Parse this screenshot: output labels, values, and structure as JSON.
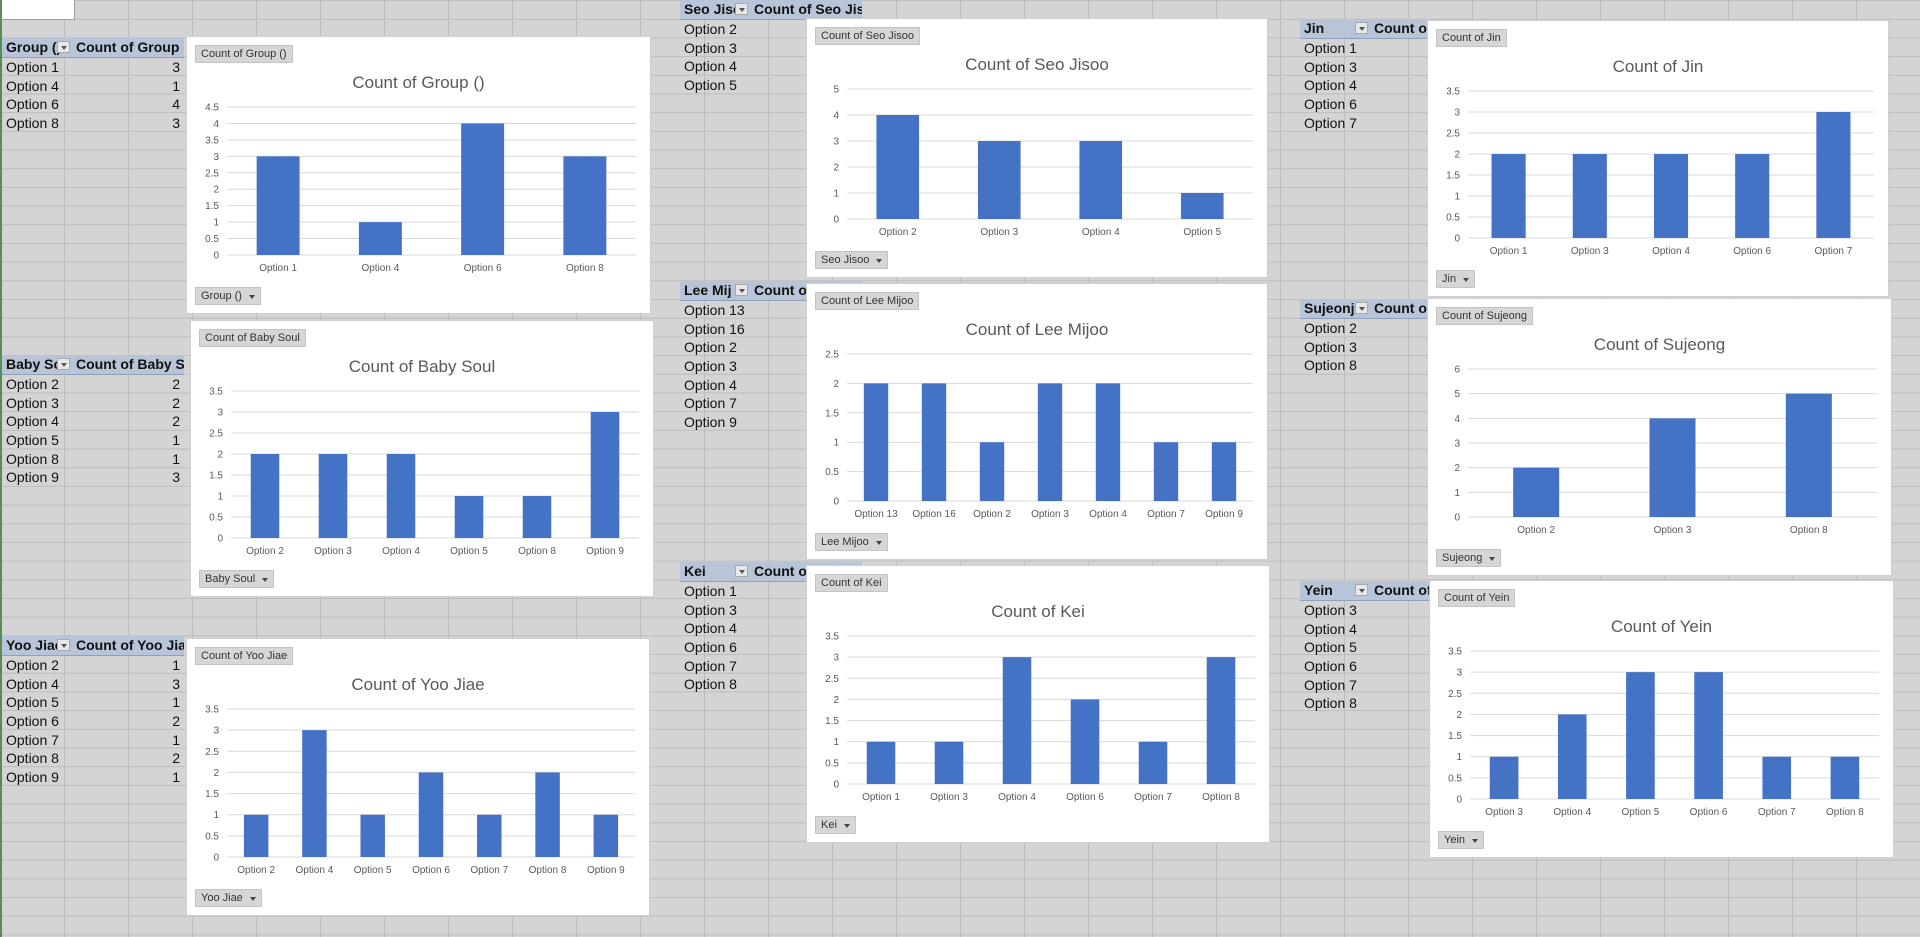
{
  "pivots": [
    {
      "row_header": "Group ()",
      "value_header": "Count of Group ()",
      "rows": [
        [
          "Option 1",
          "3"
        ],
        [
          "Option 4",
          "1"
        ],
        [
          "Option 6",
          "4"
        ],
        [
          "Option 8",
          "3"
        ]
      ]
    },
    {
      "row_header": "Baby Sou",
      "value_header": "Count of Baby Sou",
      "rows": [
        [
          "Option 2",
          "2"
        ],
        [
          "Option 3",
          "2"
        ],
        [
          "Option 4",
          "2"
        ],
        [
          "Option 5",
          "1"
        ],
        [
          "Option 8",
          "1"
        ],
        [
          "Option 9",
          "3"
        ]
      ]
    },
    {
      "row_header": "Yoo Jiae",
      "value_header": "Count of Yoo Jiae",
      "rows": [
        [
          "Option 2",
          "1"
        ],
        [
          "Option 4",
          "3"
        ],
        [
          "Option 5",
          "1"
        ],
        [
          "Option 6",
          "2"
        ],
        [
          "Option 7",
          "1"
        ],
        [
          "Option 8",
          "2"
        ],
        [
          "Option 9",
          "1"
        ]
      ]
    },
    {
      "row_header": "Seo Jisc",
      "value_header": "Count of Seo Jisoo",
      "rows": [
        [
          "Option 2",
          "4"
        ],
        [
          "Option 3",
          "3"
        ],
        [
          "Option 4",
          "3"
        ],
        [
          "Option 5",
          "1"
        ]
      ]
    },
    {
      "row_header": "Lee Mij",
      "value_header": "Count of L",
      "rows": [
        [
          "Option 13",
          "2"
        ],
        [
          "Option 16",
          "2"
        ],
        [
          "Option 2",
          "1"
        ],
        [
          "Option 3",
          "2"
        ],
        [
          "Option 4",
          "2"
        ],
        [
          "Option 7",
          "1"
        ],
        [
          "Option 9",
          "1"
        ]
      ]
    },
    {
      "row_header": "Kei",
      "value_header": "Count of K",
      "rows": [
        [
          "Option 1",
          "1"
        ],
        [
          "Option 3",
          "1"
        ],
        [
          "Option 4",
          "3"
        ],
        [
          "Option 6",
          "2"
        ],
        [
          "Option 7",
          "1"
        ],
        [
          "Option 8",
          "3"
        ]
      ]
    },
    {
      "row_header": "Jin",
      "value_header": "Count of J",
      "rows": [
        [
          "Option 1",
          "2"
        ],
        [
          "Option 3",
          "2"
        ],
        [
          "Option 4",
          "2"
        ],
        [
          "Option 6",
          "2"
        ],
        [
          "Option 7",
          "3"
        ]
      ]
    },
    {
      "row_header": "Sujeonj",
      "value_header": "Count of S",
      "rows": [
        [
          "Option 2",
          "2"
        ],
        [
          "Option 3",
          "4"
        ],
        [
          "Option 8",
          "5"
        ]
      ]
    },
    {
      "row_header": "Yein",
      "value_header": "Count of Y",
      "rows": [
        [
          "Option 3",
          "1"
        ],
        [
          "Option 4",
          "2"
        ],
        [
          "Option 5",
          "3"
        ],
        [
          "Option 6",
          "3"
        ],
        [
          "Option 7",
          "1"
        ],
        [
          "Option 8",
          "1"
        ]
      ]
    }
  ],
  "chart_data": [
    {
      "type": "bar",
      "tag": "Count of Group ()",
      "title": "Count of Group ()",
      "filter": "Group ()",
      "categories": [
        "Option 1",
        "Option 4",
        "Option 6",
        "Option 8"
      ],
      "values": [
        3,
        1,
        4,
        3
      ],
      "ylim": [
        0,
        4.5
      ],
      "ticks": [
        "0",
        "0.5",
        "1",
        "1.5",
        "2",
        "2.5",
        "3",
        "3.5",
        "4",
        "4.5"
      ]
    },
    {
      "type": "bar",
      "tag": "Count of Baby Soul",
      "title": "Count of Baby Soul",
      "filter": "Baby Soul",
      "categories": [
        "Option 2",
        "Option 3",
        "Option 4",
        "Option 5",
        "Option 8",
        "Option 9"
      ],
      "values": [
        2,
        2,
        2,
        1,
        1,
        3
      ],
      "ylim": [
        0,
        3.5
      ],
      "ticks": [
        "0",
        "0.5",
        "1",
        "1.5",
        "2",
        "2.5",
        "3",
        "3.5"
      ]
    },
    {
      "type": "bar",
      "tag": "Count of Yoo Jiae",
      "title": "Count of Yoo Jiae",
      "filter": "Yoo Jiae",
      "categories": [
        "Option 2",
        "Option 4",
        "Option 5",
        "Option 6",
        "Option 7",
        "Option 8",
        "Option 9"
      ],
      "values": [
        1,
        3,
        1,
        2,
        1,
        2,
        1
      ],
      "ylim": [
        0,
        3.5
      ],
      "ticks": [
        "0",
        "0.5",
        "1",
        "1.5",
        "2",
        "2.5",
        "3",
        "3.5"
      ]
    },
    {
      "type": "bar",
      "tag": "Count of Seo Jisoo",
      "title": "Count of Seo Jisoo",
      "filter": "Seo Jisoo",
      "categories": [
        "Option 2",
        "Option 3",
        "Option 4",
        "Option 5"
      ],
      "values": [
        4,
        3,
        3,
        1
      ],
      "ylim": [
        0,
        5
      ],
      "ticks": [
        "0",
        "1",
        "2",
        "3",
        "4",
        "5"
      ]
    },
    {
      "type": "bar",
      "tag": "Count of Lee Mijoo",
      "title": "Count of Lee Mijoo",
      "filter": "Lee Mijoo",
      "categories": [
        "Option 13",
        "Option 16",
        "Option 2",
        "Option 3",
        "Option 4",
        "Option 7",
        "Option 9"
      ],
      "values": [
        2,
        2,
        1,
        2,
        2,
        1,
        1
      ],
      "ylim": [
        0,
        2.5
      ],
      "ticks": [
        "0",
        "0.5",
        "1",
        "1.5",
        "2",
        "2.5"
      ]
    },
    {
      "type": "bar",
      "tag": "Count of Kei",
      "title": "Count of Kei",
      "filter": "Kei",
      "categories": [
        "Option 1",
        "Option 3",
        "Option 4",
        "Option 6",
        "Option 7",
        "Option 8"
      ],
      "values": [
        1,
        1,
        3,
        2,
        1,
        3
      ],
      "ylim": [
        0,
        3.5
      ],
      "ticks": [
        "0",
        "0.5",
        "1",
        "1.5",
        "2",
        "2.5",
        "3",
        "3.5"
      ]
    },
    {
      "type": "bar",
      "tag": "Count of Jin",
      "title": "Count of Jin",
      "filter": "Jin",
      "categories": [
        "Option 1",
        "Option 3",
        "Option 4",
        "Option 6",
        "Option 7"
      ],
      "values": [
        2,
        2,
        2,
        2,
        3
      ],
      "ylim": [
        0,
        3.5
      ],
      "ticks": [
        "0",
        "0.5",
        "1",
        "1.5",
        "2",
        "2.5",
        "3",
        "3.5"
      ]
    },
    {
      "type": "bar",
      "tag": "Count of Sujeong",
      "title": "Count of Sujeong",
      "filter": "Sujeong",
      "categories": [
        "Option 2",
        "Option 3",
        "Option 8"
      ],
      "values": [
        2,
        4,
        5
      ],
      "ylim": [
        0,
        6
      ],
      "ticks": [
        "0",
        "1",
        "2",
        "3",
        "4",
        "5",
        "6"
      ]
    },
    {
      "type": "bar",
      "tag": "Count of Yein",
      "title": "Count of Yein",
      "filter": "Yein",
      "categories": [
        "Option 3",
        "Option 4",
        "Option 5",
        "Option 6",
        "Option 7",
        "Option 8"
      ],
      "values": [
        1,
        2,
        3,
        3,
        1,
        1
      ],
      "ylim": [
        0,
        3.5
      ],
      "ticks": [
        "0",
        "0.5",
        "1",
        "1.5",
        "2",
        "2.5",
        "3",
        "3.5"
      ]
    }
  ],
  "colors": {
    "bar": "#4472c4",
    "grid": "#d9d9d9",
    "axis_text": "#595959",
    "title": "#595959"
  }
}
